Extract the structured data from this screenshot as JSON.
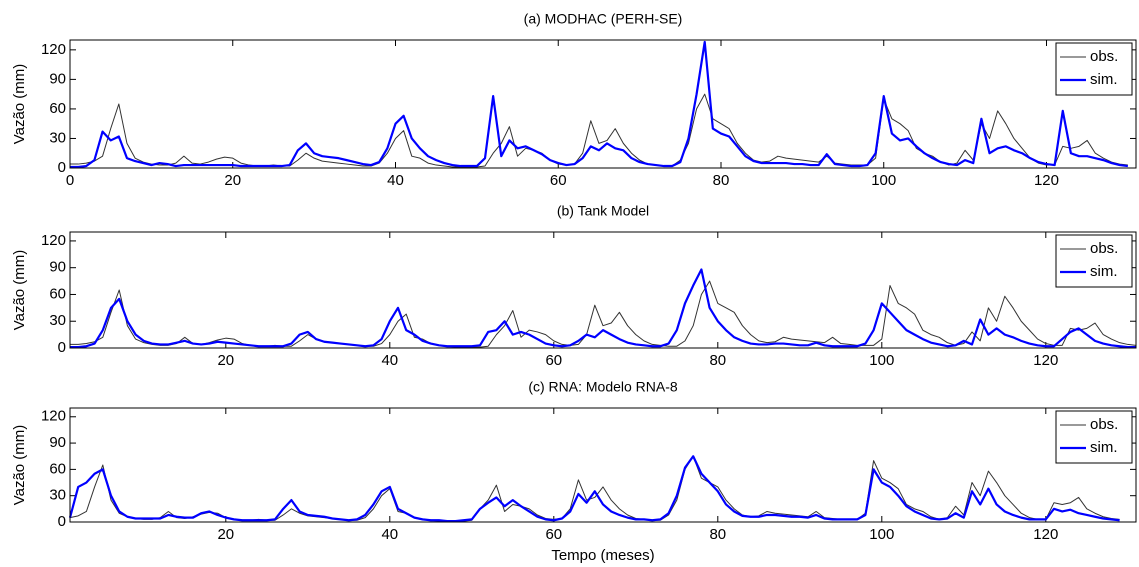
{
  "chart_data": [
    {
      "type": "line",
      "title": "(a) MODHAC (PERH-SE)",
      "ylabel": "Vazão (mm)",
      "x": [
        0,
        1,
        2,
        3,
        4,
        5,
        6,
        7,
        8,
        9,
        10,
        11,
        12,
        13,
        14,
        15,
        16,
        17,
        18,
        19,
        20,
        21,
        22,
        23,
        24,
        25,
        26,
        27,
        28,
        29,
        30,
        31,
        32,
        33,
        34,
        35,
        36,
        37,
        38,
        39,
        40,
        41,
        42,
        43,
        44,
        45,
        46,
        47,
        48,
        49,
        50,
        51,
        52,
        53,
        54,
        55,
        56,
        57,
        58,
        59,
        60,
        61,
        62,
        63,
        64,
        65,
        66,
        67,
        68,
        69,
        70,
        71,
        72,
        73,
        74,
        75,
        76,
        77,
        78,
        79,
        80,
        81,
        82,
        83,
        84,
        85,
        86,
        87,
        88,
        89,
        90,
        91,
        92,
        93,
        94,
        95,
        96,
        97,
        98,
        99,
        100,
        101,
        102,
        103,
        104,
        105,
        106,
        107,
        108,
        109,
        110,
        111,
        112,
        113,
        114,
        115,
        116,
        117,
        118,
        119,
        120,
        121,
        122,
        123,
        124,
        125,
        126,
        127,
        128,
        129,
        130
      ],
      "xlim": [
        0,
        131
      ],
      "xticks": [
        0,
        20,
        40,
        60,
        80,
        100,
        120
      ],
      "ylim": [
        0,
        130
      ],
      "yticks": [
        0,
        30,
        60,
        90,
        120
      ],
      "legend": "upper right",
      "series": [
        {
          "name": "obs.",
          "color": "#333333",
          "values": [
            4,
            4,
            5,
            7,
            12,
            40,
            65,
            25,
            10,
            6,
            4,
            3,
            3,
            5,
            12,
            5,
            4,
            6,
            9,
            11,
            10,
            5,
            3,
            2,
            2,
            3,
            2,
            2,
            8,
            15,
            10,
            7,
            6,
            5,
            4,
            3,
            2,
            2,
            5,
            15,
            30,
            38,
            12,
            10,
            5,
            3,
            2,
            1,
            1,
            1,
            1,
            2,
            15,
            25,
            42,
            12,
            20,
            18,
            15,
            8,
            4,
            3,
            4,
            15,
            48,
            25,
            28,
            40,
            25,
            15,
            8,
            4,
            3,
            2,
            2,
            8,
            25,
            60,
            75,
            50,
            45,
            40,
            25,
            15,
            8,
            6,
            7,
            12,
            10,
            9,
            8,
            7,
            6,
            12,
            5,
            4,
            3,
            3,
            3,
            10,
            70,
            50,
            45,
            38,
            20,
            15,
            12,
            6,
            3,
            5,
            18,
            8,
            45,
            30,
            58,
            45,
            30,
            20,
            10,
            5,
            3,
            3,
            22,
            20,
            22,
            28,
            15,
            10,
            6,
            4,
            3
          ]
        },
        {
          "name": "sim.",
          "color": "#0000ff",
          "values": [
            1,
            1,
            2,
            8,
            37,
            28,
            32,
            10,
            7,
            5,
            3,
            5,
            4,
            2,
            3,
            3,
            3,
            3,
            3,
            3,
            3,
            2,
            2,
            2,
            2,
            2,
            2,
            3,
            18,
            25,
            15,
            12,
            11,
            10,
            8,
            6,
            4,
            3,
            6,
            20,
            45,
            53,
            30,
            20,
            12,
            8,
            5,
            3,
            2,
            2,
            2,
            10,
            73,
            12,
            28,
            20,
            22,
            18,
            14,
            8,
            5,
            3,
            4,
            10,
            22,
            18,
            25,
            20,
            18,
            10,
            6,
            4,
            3,
            2,
            2,
            6,
            30,
            75,
            128,
            40,
            35,
            32,
            22,
            12,
            7,
            5,
            5,
            5,
            5,
            4,
            4,
            3,
            3,
            14,
            4,
            3,
            2,
            2,
            3,
            15,
            73,
            35,
            28,
            30,
            22,
            15,
            10,
            6,
            4,
            3,
            8,
            5,
            50,
            15,
            20,
            22,
            18,
            15,
            10,
            6,
            4,
            3,
            58,
            15,
            12,
            12,
            10,
            8,
            5,
            3,
            2
          ]
        }
      ]
    },
    {
      "type": "line",
      "title": "(b) Tank Model",
      "ylabel": "Vazão (mm)",
      "x": [
        1,
        2,
        3,
        4,
        5,
        6,
        7,
        8,
        9,
        10,
        11,
        12,
        13,
        14,
        15,
        16,
        17,
        18,
        19,
        20,
        21,
        22,
        23,
        24,
        25,
        26,
        27,
        28,
        29,
        30,
        31,
        32,
        33,
        34,
        35,
        36,
        37,
        38,
        39,
        40,
        41,
        42,
        43,
        44,
        45,
        46,
        47,
        48,
        49,
        50,
        51,
        52,
        53,
        54,
        55,
        56,
        57,
        58,
        59,
        60,
        61,
        62,
        63,
        64,
        65,
        66,
        67,
        68,
        69,
        70,
        71,
        72,
        73,
        74,
        75,
        76,
        77,
        78,
        79,
        80,
        81,
        82,
        83,
        84,
        85,
        86,
        87,
        88,
        89,
        90,
        91,
        92,
        93,
        94,
        95,
        96,
        97,
        98,
        99,
        100,
        101,
        102,
        103,
        104,
        105,
        106,
        107,
        108,
        109,
        110,
        111,
        112,
        113,
        114,
        115,
        116,
        117,
        118,
        119,
        120,
        121,
        122,
        123,
        124,
        125,
        126,
        127,
        128,
        129,
        130,
        131
      ],
      "xlim": [
        1,
        131
      ],
      "xticks": [
        20,
        40,
        60,
        80,
        100,
        120
      ],
      "ylim": [
        0,
        130
      ],
      "yticks": [
        0,
        30,
        60,
        90,
        120
      ],
      "legend": "upper right",
      "series": [
        {
          "name": "obs.",
          "color": "#333333",
          "values": [
            4,
            4,
            5,
            7,
            12,
            40,
            65,
            25,
            10,
            6,
            4,
            3,
            3,
            5,
            12,
            5,
            4,
            6,
            9,
            11,
            10,
            5,
            3,
            2,
            2,
            3,
            2,
            2,
            8,
            15,
            10,
            7,
            6,
            5,
            4,
            3,
            2,
            2,
            5,
            15,
            30,
            38,
            12,
            10,
            5,
            3,
            2,
            1,
            1,
            1,
            1,
            2,
            15,
            25,
            42,
            12,
            20,
            18,
            15,
            8,
            4,
            3,
            4,
            15,
            48,
            25,
            28,
            40,
            25,
            15,
            8,
            4,
            3,
            2,
            2,
            8,
            25,
            60,
            75,
            50,
            45,
            40,
            25,
            15,
            8,
            6,
            7,
            12,
            10,
            9,
            8,
            7,
            6,
            12,
            5,
            4,
            3,
            3,
            3,
            10,
            70,
            50,
            45,
            38,
            20,
            15,
            12,
            6,
            3,
            5,
            18,
            8,
            45,
            30,
            58,
            45,
            30,
            20,
            10,
            5,
            3,
            3,
            22,
            20,
            22,
            28,
            15,
            10,
            6,
            4,
            3
          ]
        },
        {
          "name": "sim.",
          "color": "#0000ff",
          "values": [
            1,
            1,
            2,
            5,
            20,
            45,
            55,
            30,
            15,
            8,
            5,
            4,
            4,
            6,
            8,
            5,
            4,
            5,
            7,
            6,
            5,
            4,
            3,
            2,
            2,
            2,
            2,
            5,
            15,
            18,
            10,
            7,
            6,
            5,
            4,
            3,
            2,
            3,
            10,
            30,
            45,
            20,
            15,
            8,
            5,
            3,
            2,
            2,
            2,
            2,
            3,
            18,
            20,
            30,
            15,
            18,
            15,
            10,
            5,
            3,
            2,
            3,
            8,
            15,
            12,
            20,
            15,
            10,
            6,
            4,
            3,
            2,
            2,
            5,
            20,
            50,
            70,
            88,
            45,
            30,
            20,
            12,
            8,
            5,
            4,
            4,
            5,
            5,
            4,
            3,
            3,
            6,
            3,
            2,
            2,
            2,
            2,
            5,
            20,
            50,
            40,
            30,
            20,
            15,
            10,
            6,
            4,
            2,
            3,
            8,
            4,
            32,
            15,
            22,
            15,
            12,
            8,
            5,
            3,
            2,
            2,
            10,
            18,
            22,
            15,
            8,
            5,
            3,
            2,
            1,
            1
          ]
        }
      ]
    },
    {
      "type": "line",
      "title": "(c) RNA: Modelo RNA-8",
      "ylabel": "Vazão (mm)",
      "xlabel": "Tempo (meses)",
      "x": [
        1,
        2,
        3,
        4,
        5,
        6,
        7,
        8,
        9,
        10,
        11,
        12,
        13,
        14,
        15,
        16,
        17,
        18,
        19,
        20,
        21,
        22,
        23,
        24,
        25,
        26,
        27,
        28,
        29,
        30,
        31,
        32,
        33,
        34,
        35,
        36,
        37,
        38,
        39,
        40,
        41,
        42,
        43,
        44,
        45,
        46,
        47,
        48,
        49,
        50,
        51,
        52,
        53,
        54,
        55,
        56,
        57,
        58,
        59,
        60,
        61,
        62,
        63,
        64,
        65,
        66,
        67,
        68,
        69,
        70,
        71,
        72,
        73,
        74,
        75,
        76,
        77,
        78,
        79,
        80,
        81,
        82,
        83,
        84,
        85,
        86,
        87,
        88,
        89,
        90,
        91,
        92,
        93,
        94,
        95,
        96,
        97,
        98,
        99,
        100,
        101,
        102,
        103,
        104,
        105,
        106,
        107,
        108,
        109,
        110,
        111,
        112,
        113,
        114,
        115,
        116,
        117,
        118,
        119,
        120,
        121,
        122,
        123,
        124,
        125,
        126,
        127,
        128,
        129
      ],
      "xlim": [
        1,
        131
      ],
      "xticks": [
        20,
        40,
        60,
        80,
        100,
        120
      ],
      "ylim": [
        0,
        130
      ],
      "yticks": [
        0,
        30,
        60,
        90,
        120
      ],
      "legend": "upper right",
      "series": [
        {
          "name": "obs.",
          "color": "#333333",
          "values": [
            5,
            7,
            12,
            40,
            65,
            25,
            10,
            6,
            4,
            3,
            3,
            5,
            12,
            5,
            4,
            6,
            9,
            11,
            10,
            5,
            3,
            2,
            2,
            3,
            2,
            2,
            8,
            15,
            10,
            7,
            6,
            5,
            4,
            3,
            2,
            2,
            5,
            15,
            30,
            38,
            12,
            10,
            5,
            3,
            2,
            1,
            1,
            1,
            1,
            2,
            15,
            25,
            42,
            12,
            20,
            18,
            15,
            8,
            4,
            3,
            4,
            15,
            48,
            25,
            28,
            40,
            25,
            15,
            8,
            4,
            3,
            2,
            2,
            8,
            25,
            60,
            75,
            50,
            45,
            40,
            25,
            15,
            8,
            6,
            7,
            12,
            10,
            9,
            8,
            7,
            6,
            12,
            5,
            4,
            3,
            3,
            3,
            10,
            70,
            50,
            45,
            38,
            20,
            15,
            12,
            6,
            3,
            5,
            18,
            8,
            45,
            30,
            58,
            45,
            30,
            20,
            10,
            5,
            3,
            3,
            22,
            20,
            22,
            28,
            15,
            10,
            6,
            4,
            3
          ]
        },
        {
          "name": "sim.",
          "color": "#0000ff",
          "values": [
            5,
            40,
            45,
            55,
            60,
            30,
            12,
            6,
            4,
            4,
            4,
            4,
            8,
            6,
            5,
            5,
            10,
            12,
            8,
            5,
            3,
            2,
            2,
            2,
            2,
            3,
            15,
            25,
            12,
            8,
            7,
            6,
            4,
            3,
            2,
            3,
            8,
            20,
            35,
            40,
            15,
            10,
            5,
            3,
            2,
            2,
            1,
            1,
            2,
            3,
            15,
            22,
            28,
            18,
            25,
            18,
            12,
            6,
            3,
            2,
            4,
            12,
            32,
            22,
            35,
            20,
            12,
            8,
            5,
            3,
            3,
            2,
            3,
            10,
            30,
            62,
            75,
            55,
            45,
            35,
            20,
            12,
            7,
            6,
            6,
            8,
            8,
            7,
            6,
            6,
            5,
            8,
            4,
            3,
            3,
            3,
            3,
            8,
            60,
            45,
            40,
            30,
            18,
            12,
            8,
            4,
            3,
            4,
            10,
            5,
            35,
            20,
            38,
            20,
            12,
            8,
            5,
            3,
            3,
            3,
            15,
            12,
            14,
            10,
            8,
            6,
            4,
            3,
            2
          ]
        }
      ]
    }
  ]
}
